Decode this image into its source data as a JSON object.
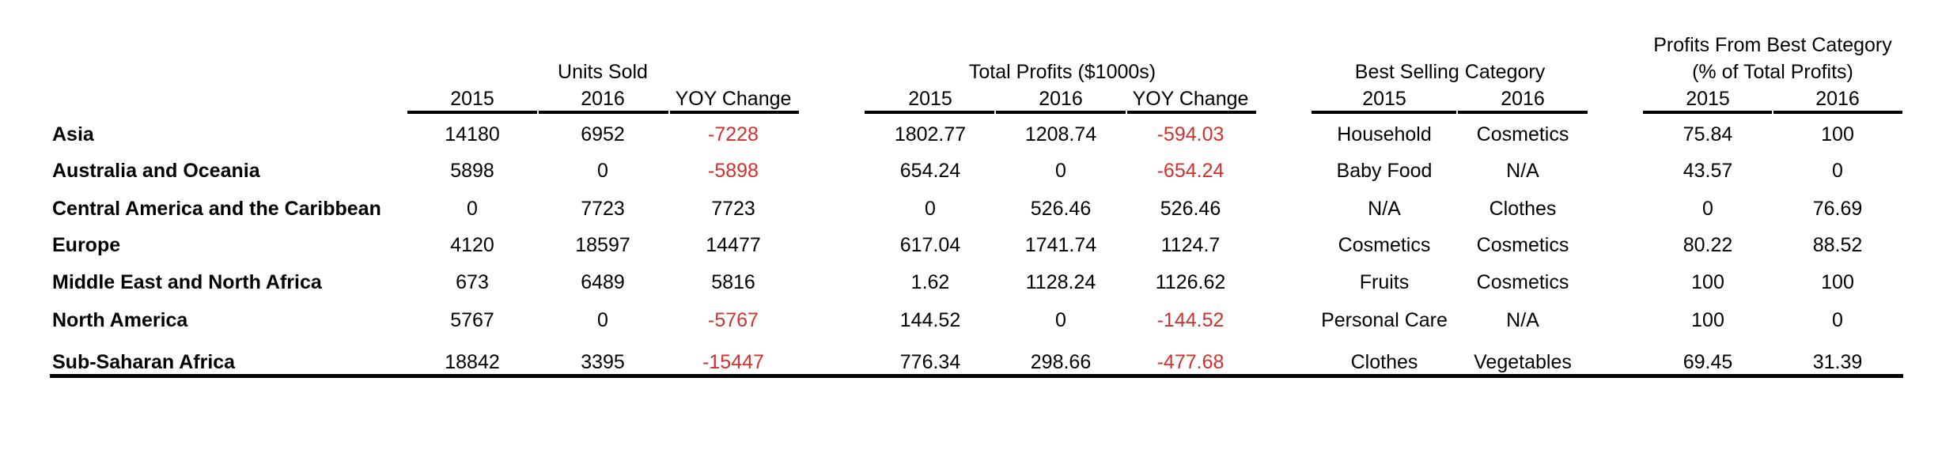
{
  "headers": {
    "units_sold": "Units Sold",
    "total_profits": "Total Profits ($1000s)",
    "best_selling": "Best Selling Category",
    "profits_best_line1": "Profits From Best Category",
    "profits_best_line2": "(% of Total Profits)"
  },
  "subheaders": {
    "units": [
      "2015",
      "2016",
      "YOY Change"
    ],
    "profits": [
      "2015",
      "2016",
      "YOY Change"
    ],
    "category": [
      "2015",
      "2016"
    ],
    "pct": [
      "2015",
      "2016"
    ]
  },
  "rows": [
    {
      "region": "Asia",
      "units_2015": "14180",
      "units_2016": "6952",
      "units_yoy": "-7228",
      "profit_2015": "1802.77",
      "profit_2016": "1208.74",
      "profit_yoy": "-594.03",
      "cat_2015": "Household",
      "cat_2016": "Cosmetics",
      "pct_2015": "75.84",
      "pct_2016": "100"
    },
    {
      "region": "Australia and Oceania",
      "units_2015": "5898",
      "units_2016": "0",
      "units_yoy": "-5898",
      "profit_2015": "654.24",
      "profit_2016": "0",
      "profit_yoy": "-654.24",
      "cat_2015": "Baby Food",
      "cat_2016": "N/A",
      "pct_2015": "43.57",
      "pct_2016": "0"
    },
    {
      "region": "Central America and the Caribbean",
      "units_2015": "0",
      "units_2016": "7723",
      "units_yoy": "7723",
      "profit_2015": "0",
      "profit_2016": "526.46",
      "profit_yoy": "526.46",
      "cat_2015": "N/A",
      "cat_2016": "Clothes",
      "pct_2015": "0",
      "pct_2016": "76.69"
    },
    {
      "region": "Europe",
      "units_2015": "4120",
      "units_2016": "18597",
      "units_yoy": "14477",
      "profit_2015": "617.04",
      "profit_2016": "1741.74",
      "profit_yoy": "1124.7",
      "cat_2015": "Cosmetics",
      "cat_2016": "Cosmetics",
      "pct_2015": "80.22",
      "pct_2016": "88.52"
    },
    {
      "region": "Middle East and North Africa",
      "units_2015": "673",
      "units_2016": "6489",
      "units_yoy": "5816",
      "profit_2015": "1.62",
      "profit_2016": "1128.24",
      "profit_yoy": "1126.62",
      "cat_2015": "Fruits",
      "cat_2016": "Cosmetics",
      "pct_2015": "100",
      "pct_2016": "100"
    },
    {
      "region": "North America",
      "units_2015": "5767",
      "units_2016": "0",
      "units_yoy": "-5767",
      "profit_2015": "144.52",
      "profit_2016": "0",
      "profit_yoy": "-144.52",
      "cat_2015": "Personal Care",
      "cat_2016": "N/A",
      "pct_2015": "100",
      "pct_2016": "0"
    },
    {
      "region": "Sub-Saharan Africa",
      "units_2015": "18842",
      "units_2016": "3395",
      "units_yoy": "-15447",
      "profit_2015": "776.34",
      "profit_2016": "298.66",
      "profit_yoy": "-477.68",
      "cat_2015": "Clothes",
      "cat_2016": "Vegetables",
      "pct_2015": "69.45",
      "pct_2016": "31.39"
    }
  ],
  "colors": {
    "text": "#000000",
    "negative": "#d0312d",
    "rule": "#000000"
  }
}
